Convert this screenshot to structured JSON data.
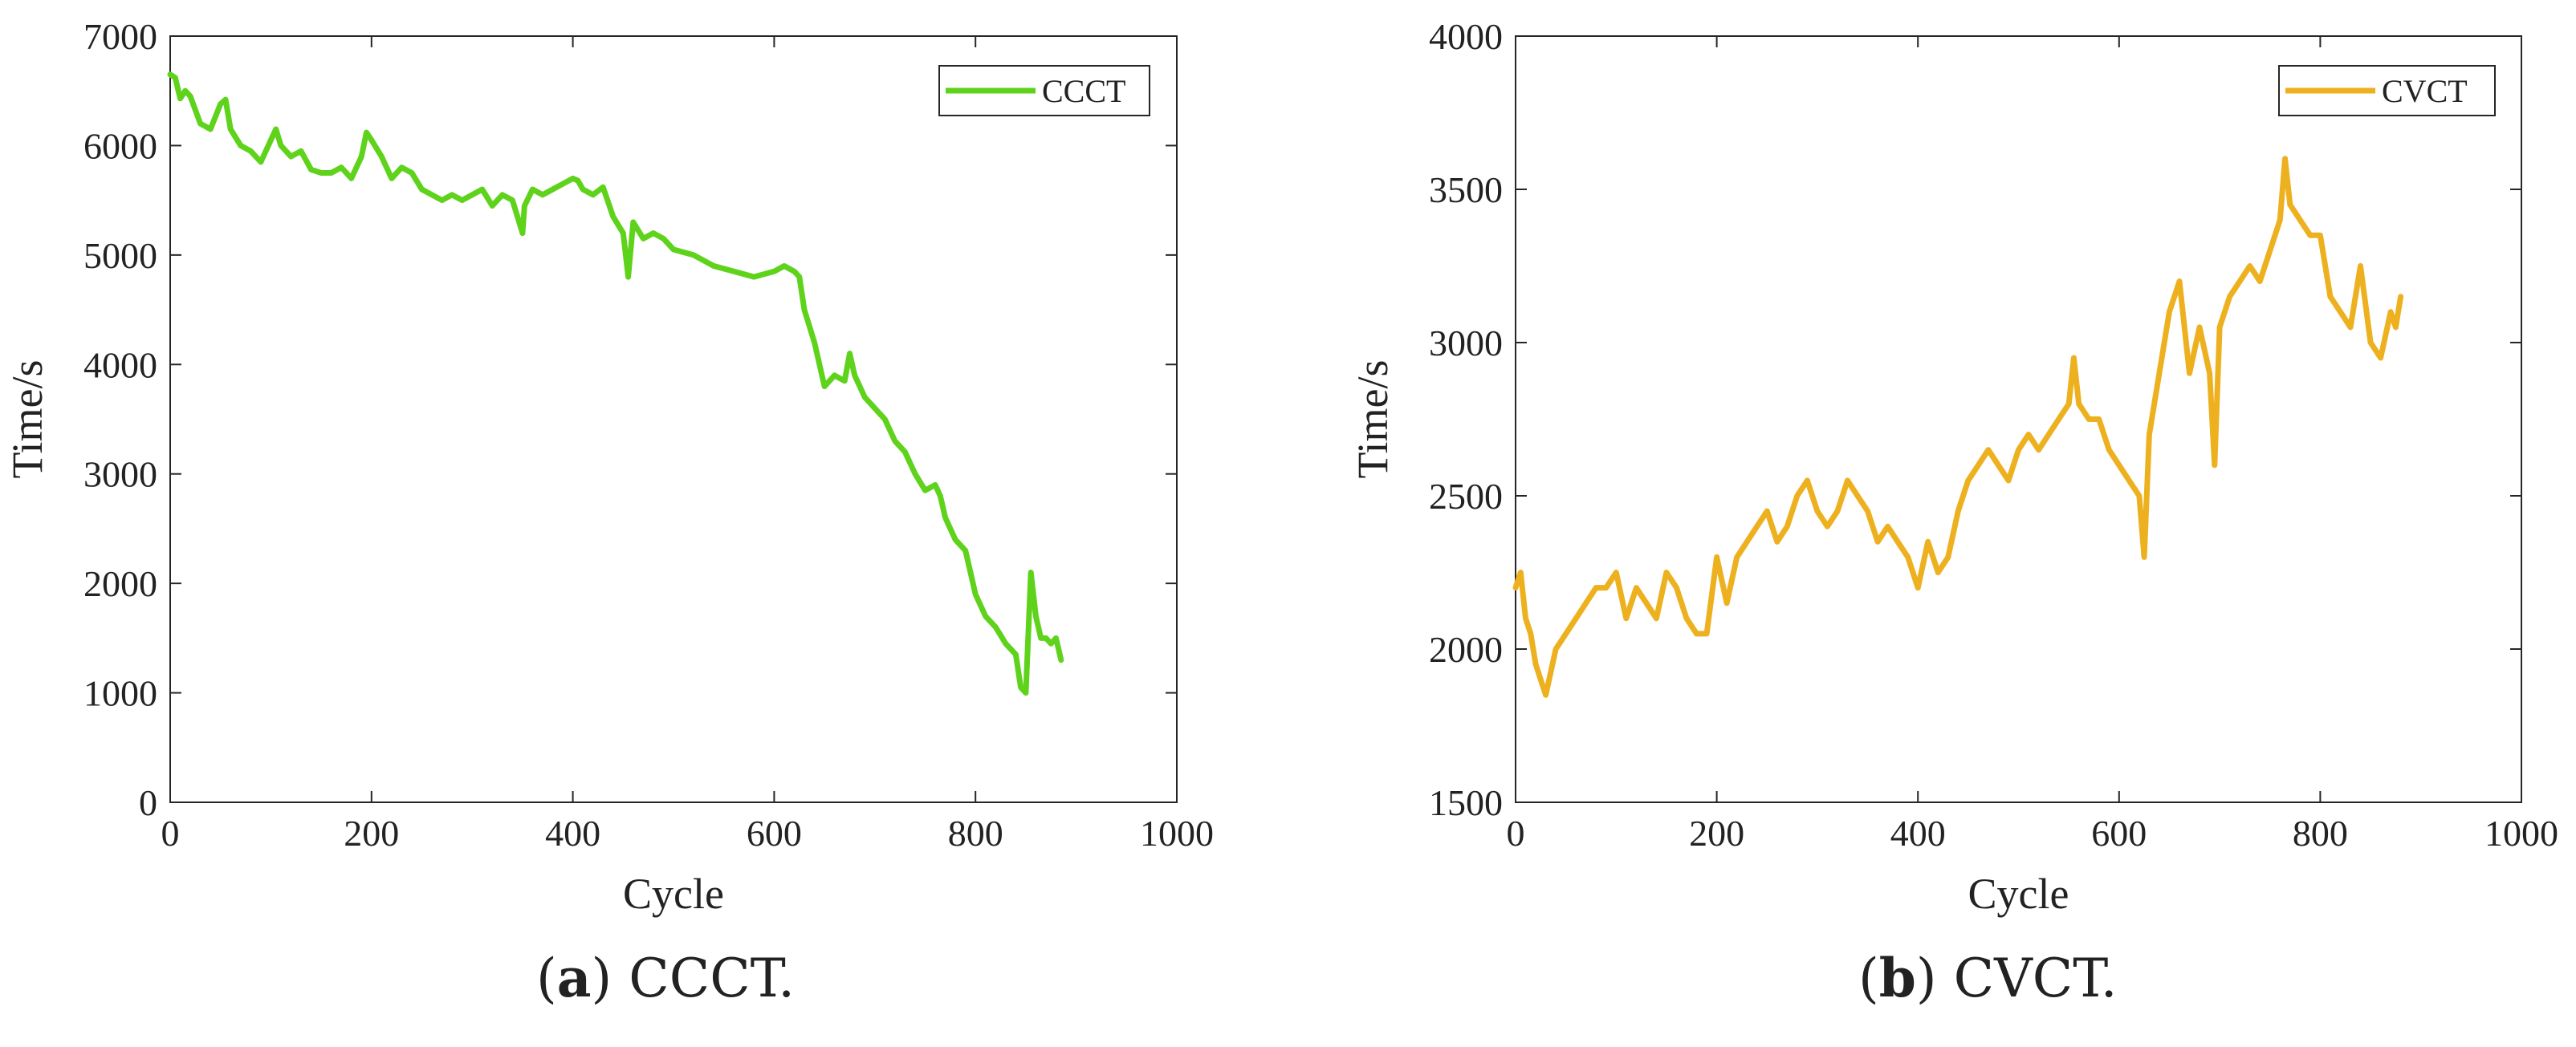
{
  "captions": [
    {
      "paren_open": "(",
      "letter": "a",
      "paren_close": ")",
      "text": " CCCT."
    },
    {
      "paren_open": "(",
      "letter": "b",
      "paren_close": ")",
      "text": " CVCT."
    }
  ],
  "chart_data": [
    {
      "type": "line",
      "xlabel": "Cycle",
      "ylabel": "Time/s",
      "xlim": [
        0,
        1000
      ],
      "ylim": [
        0,
        7000
      ],
      "xticks": [
        0,
        200,
        400,
        600,
        800,
        1000
      ],
      "yticks": [
        0,
        1000,
        2000,
        3000,
        4000,
        5000,
        6000,
        7000
      ],
      "grid": false,
      "legend_position": "top-right",
      "series": [
        {
          "name": "CCCT",
          "color": "#5fd31c",
          "x": [
            0,
            5,
            10,
            15,
            20,
            30,
            40,
            50,
            55,
            60,
            70,
            80,
            90,
            100,
            105,
            110,
            120,
            130,
            140,
            150,
            160,
            170,
            180,
            190,
            195,
            200,
            210,
            220,
            230,
            240,
            250,
            260,
            270,
            280,
            290,
            300,
            310,
            320,
            330,
            340,
            350,
            352,
            360,
            370,
            380,
            390,
            400,
            405,
            410,
            420,
            430,
            440,
            450,
            455,
            460,
            470,
            480,
            490,
            500,
            520,
            540,
            560,
            580,
            600,
            610,
            620,
            625,
            630,
            640,
            650,
            660,
            670,
            675,
            680,
            690,
            700,
            710,
            720,
            730,
            740,
            750,
            760,
            765,
            770,
            780,
            790,
            800,
            810,
            820,
            830,
            840,
            845,
            850,
            855,
            860,
            865,
            870,
            875,
            880,
            885
          ],
          "y": [
            6650,
            6620,
            6430,
            6500,
            6450,
            6200,
            6150,
            6380,
            6420,
            6150,
            6000,
            5950,
            5850,
            6050,
            6150,
            6000,
            5900,
            5950,
            5780,
            5750,
            5750,
            5800,
            5700,
            5900,
            6120,
            6050,
            5900,
            5700,
            5800,
            5750,
            5600,
            5550,
            5500,
            5550,
            5500,
            5550,
            5600,
            5450,
            5550,
            5500,
            5200,
            5450,
            5600,
            5550,
            5600,
            5650,
            5700,
            5680,
            5600,
            5550,
            5620,
            5350,
            5200,
            4800,
            5300,
            5150,
            5200,
            5150,
            5050,
            5000,
            4900,
            4850,
            4800,
            4850,
            4900,
            4850,
            4800,
            4500,
            4200,
            3800,
            3900,
            3850,
            4100,
            3900,
            3700,
            3600,
            3500,
            3300,
            3200,
            3000,
            2850,
            2900,
            2800,
            2600,
            2400,
            2300,
            1900,
            1700,
            1600,
            1450,
            1350,
            1050,
            1000,
            2100,
            1700,
            1500,
            1500,
            1450,
            1500,
            1300
          ]
        }
      ]
    },
    {
      "type": "line",
      "xlabel": "Cycle",
      "ylabel": "Time/s",
      "xlim": [
        0,
        1000
      ],
      "ylim": [
        1500,
        4000
      ],
      "xticks": [
        0,
        200,
        400,
        600,
        800,
        1000
      ],
      "yticks": [
        1500,
        2000,
        2500,
        3000,
        3500,
        4000
      ],
      "grid": false,
      "legend_position": "top-right",
      "series": [
        {
          "name": "CVCT",
          "color": "#edb120",
          "x": [
            0,
            5,
            10,
            15,
            20,
            25,
            30,
            40,
            50,
            60,
            70,
            80,
            90,
            100,
            110,
            120,
            130,
            140,
            150,
            160,
            170,
            180,
            190,
            200,
            210,
            220,
            230,
            240,
            250,
            260,
            270,
            280,
            290,
            300,
            310,
            320,
            330,
            340,
            350,
            360,
            370,
            380,
            390,
            400,
            410,
            420,
            430,
            440,
            450,
            460,
            470,
            480,
            490,
            500,
            510,
            520,
            530,
            540,
            550,
            555,
            560,
            570,
            580,
            590,
            600,
            610,
            620,
            625,
            630,
            640,
            650,
            660,
            670,
            680,
            690,
            695,
            700,
            710,
            720,
            730,
            740,
            750,
            760,
            765,
            770,
            780,
            790,
            800,
            810,
            820,
            830,
            840,
            850,
            860,
            870,
            875,
            880
          ],
          "y": [
            2200,
            2250,
            2100,
            2050,
            1950,
            1900,
            1850,
            2000,
            2050,
            2100,
            2150,
            2200,
            2200,
            2250,
            2100,
            2200,
            2150,
            2100,
            2250,
            2200,
            2100,
            2050,
            2050,
            2300,
            2150,
            2300,
            2350,
            2400,
            2450,
            2350,
            2400,
            2500,
            2550,
            2450,
            2400,
            2450,
            2550,
            2500,
            2450,
            2350,
            2400,
            2350,
            2300,
            2200,
            2350,
            2250,
            2300,
            2450,
            2550,
            2600,
            2650,
            2600,
            2550,
            2650,
            2700,
            2650,
            2700,
            2750,
            2800,
            2950,
            2800,
            2750,
            2750,
            2650,
            2600,
            2550,
            2500,
            2300,
            2700,
            2900,
            3100,
            3200,
            2900,
            3050,
            2900,
            2600,
            3050,
            3150,
            3200,
            3250,
            3200,
            3300,
            3400,
            3600,
            3450,
            3400,
            3350,
            3350,
            3150,
            3100,
            3050,
            3250,
            3000,
            2950,
            3100,
            3050,
            3150
          ]
        }
      ]
    }
  ]
}
